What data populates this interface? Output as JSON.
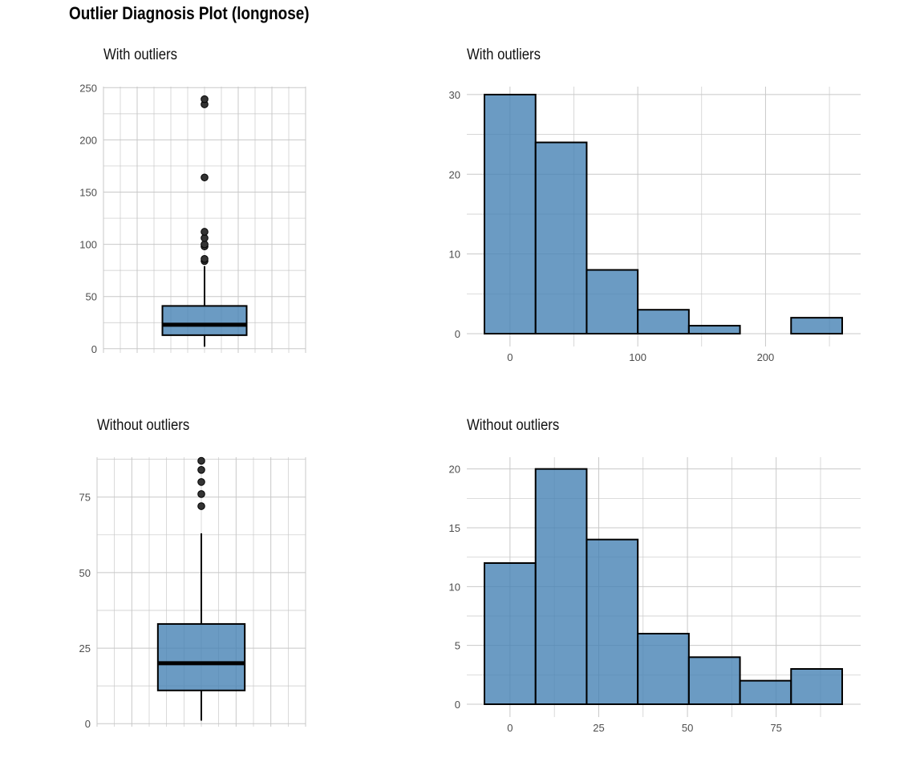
{
  "title": "Outlier Diagnosis Plot (longnose)",
  "panels": {
    "box_with": {
      "title": "With outliers"
    },
    "hist_with": {
      "title": "With outliers"
    },
    "box_without": {
      "title": "Without outliers"
    },
    "hist_without": {
      "title": "Without outliers"
    }
  },
  "colors": {
    "fill": "#4682B4",
    "outline": "#000000",
    "grid": "#C8C8C8",
    "point": "#333333"
  },
  "chart_data": [
    {
      "type": "box",
      "title": "With outliers",
      "ylim": [
        0,
        250
      ],
      "yticks": [
        0,
        50,
        100,
        150,
        200,
        250
      ],
      "stats": {
        "min": 2,
        "q1": 13,
        "median": 23,
        "q3": 41,
        "whisker_high": 79
      },
      "outliers": [
        84,
        86,
        98,
        100,
        106,
        112,
        164,
        234,
        239
      ]
    },
    {
      "type": "bar",
      "subtype": "histogram",
      "title": "With outliers",
      "xlim": [
        -20,
        260
      ],
      "xticks": [
        0,
        100,
        200
      ],
      "ylim": [
        0,
        30
      ],
      "yticks": [
        0,
        10,
        20,
        30
      ],
      "bins": [
        {
          "x0": -20,
          "x1": 20,
          "count": 30
        },
        {
          "x0": 20,
          "x1": 60,
          "count": 24
        },
        {
          "x0": 60,
          "x1": 100,
          "count": 8
        },
        {
          "x0": 100,
          "x1": 140,
          "count": 3
        },
        {
          "x0": 140,
          "x1": 180,
          "count": 1
        },
        {
          "x0": 180,
          "x1": 220,
          "count": 0
        },
        {
          "x0": 220,
          "x1": 260,
          "count": 2
        }
      ]
    },
    {
      "type": "box",
      "title": "Without outliers",
      "ylim": [
        0,
        87
      ],
      "yticks": [
        0,
        25,
        50,
        75
      ],
      "stats": {
        "min": 1,
        "q1": 11,
        "median": 20,
        "q3": 33,
        "whisker_high": 63
      },
      "outliers": [
        72,
        76,
        80,
        84,
        87
      ]
    },
    {
      "type": "bar",
      "subtype": "histogram",
      "title": "Without outliers",
      "xlim": [
        -7.2,
        93.6
      ],
      "xticks": [
        0,
        25,
        50,
        75
      ],
      "ylim": [
        0,
        20
      ],
      "yticks": [
        0,
        5,
        10,
        15,
        20
      ],
      "bins": [
        {
          "x0": -7.2,
          "x1": 7.2,
          "count": 12
        },
        {
          "x0": 7.2,
          "x1": 21.6,
          "count": 20
        },
        {
          "x0": 21.6,
          "x1": 36.0,
          "count": 14
        },
        {
          "x0": 36.0,
          "x1": 50.4,
          "count": 6
        },
        {
          "x0": 50.4,
          "x1": 64.8,
          "count": 4
        },
        {
          "x0": 64.8,
          "x1": 79.2,
          "count": 2
        },
        {
          "x0": 79.2,
          "x1": 93.6,
          "count": 3
        }
      ]
    }
  ]
}
